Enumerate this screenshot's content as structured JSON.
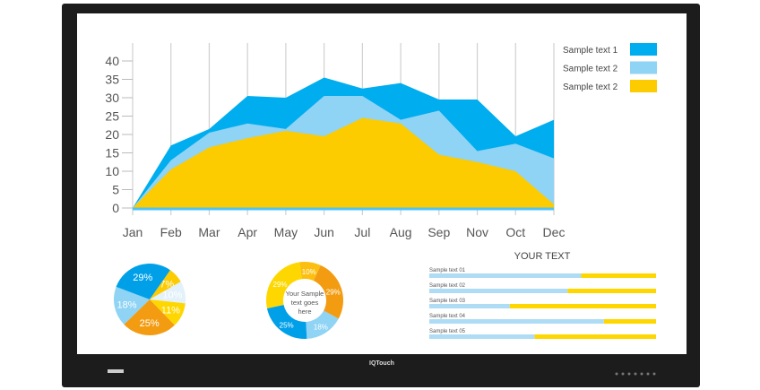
{
  "device": {
    "logo": "IQTouch"
  },
  "chart_data": [
    {
      "type": "area",
      "stacked_display": true,
      "categories": [
        "Jan",
        "Feb",
        "Mar",
        "Apr",
        "May",
        "Jun",
        "Jul",
        "Aug",
        "Sep",
        "Nov",
        "Oct",
        "Dec"
      ],
      "ylim": [
        0,
        40
      ],
      "yticks": [
        0,
        5,
        10,
        15,
        20,
        25,
        30,
        35,
        40
      ],
      "grid": "vertical",
      "legend": "top-right",
      "series": [
        {
          "name": "Sample text 1",
          "color": "#00adef",
          "values": [
            0,
            17,
            21.5,
            30.5,
            30,
            35.5,
            32.5,
            34,
            29.5,
            29.5,
            19.5,
            24
          ]
        },
        {
          "name": "Sample text 2",
          "color": "#8fd3f5",
          "values": [
            0,
            13,
            20.5,
            23,
            21.5,
            30.5,
            30.5,
            24,
            26.5,
            15.5,
            17.5,
            13.5
          ]
        },
        {
          "name": "Sample text 2",
          "color": "#fccb00",
          "values": [
            0,
            10.5,
            16.5,
            19,
            21,
            19.5,
            24.5,
            23,
            14.5,
            12.5,
            10,
            1
          ]
        }
      ]
    },
    {
      "type": "pie",
      "slices": [
        {
          "label": "7%",
          "value": 7,
          "color": "#fccb00"
        },
        {
          "label": "10%",
          "value": 10,
          "color": "#e3f1fa"
        },
        {
          "label": "11%",
          "value": 11,
          "color": "#ffd700"
        },
        {
          "label": "25%",
          "value": 25,
          "color": "#f39c12"
        },
        {
          "label": "18%",
          "value": 18,
          "color": "#8fd3f5"
        },
        {
          "label": "29%",
          "value": 29,
          "color": "#00a0e9"
        }
      ]
    },
    {
      "type": "pie",
      "donut": true,
      "center_text": [
        "Your Sample",
        "text goes",
        "here"
      ],
      "slices": [
        {
          "label": "10%",
          "value": 10,
          "color": "#fcbf10"
        },
        {
          "label": "29%",
          "value": 29,
          "color": "#f39c12"
        },
        {
          "label": "18%",
          "value": 18,
          "color": "#8fd3f5"
        },
        {
          "label": "25%",
          "value": 25,
          "color": "#00a0e9"
        },
        {
          "label": "29%",
          "value": 29,
          "color": "#ffd700"
        }
      ]
    },
    {
      "type": "bar",
      "orientation": "horizontal",
      "stacked": true,
      "title": "YOUR TEXT",
      "categories": [
        "Sample text 01",
        "Sample text 02",
        "Sample text 03",
        "Sample text 04",
        "Sample text 05"
      ],
      "values": [
        67,
        61,
        35.5,
        77,
        46.5
      ],
      "max": 100,
      "colors": [
        "#aedcf5",
        "#ffd700"
      ]
    }
  ]
}
